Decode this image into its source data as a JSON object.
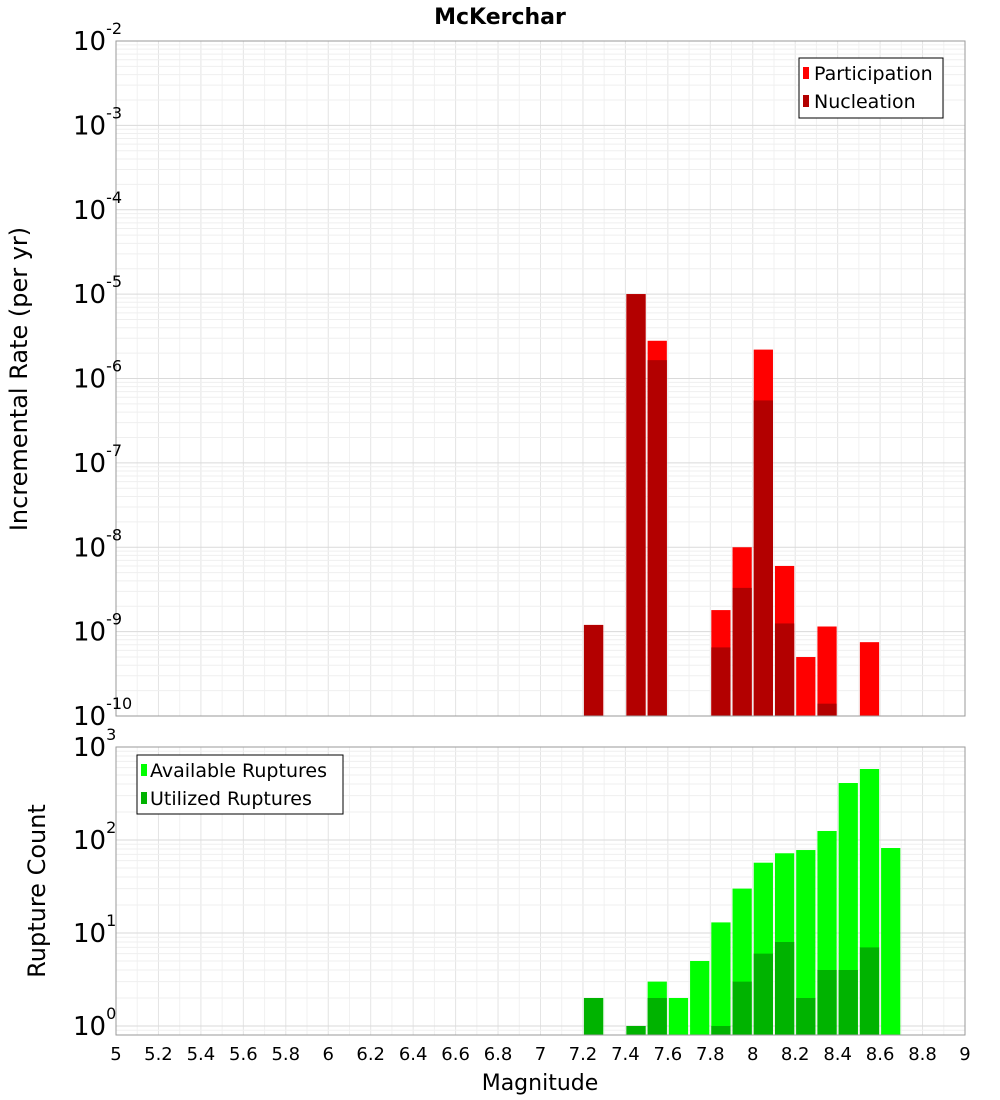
{
  "chart_data": [
    {
      "type": "bar",
      "title": "McKerchar",
      "xlabel": "",
      "ylabel": "Incremental Rate (per yr)",
      "yscale": "log",
      "ylim": [
        1e-10,
        0.01
      ],
      "xlim": [
        5,
        9
      ],
      "bin_width": 0.1,
      "y_ticks": [
        {
          "base": "10",
          "exp": "-10"
        },
        {
          "base": "10",
          "exp": "-9"
        },
        {
          "base": "10",
          "exp": "-8"
        },
        {
          "base": "10",
          "exp": "-7"
        },
        {
          "base": "10",
          "exp": "-6"
        },
        {
          "base": "10",
          "exp": "-5"
        },
        {
          "base": "10",
          "exp": "-4"
        },
        {
          "base": "10",
          "exp": "-3"
        },
        {
          "base": "10",
          "exp": "-2"
        }
      ],
      "grid": true,
      "legend_position": "top-right",
      "series": [
        {
          "name": "Participation",
          "color": "#ff0000",
          "points": [
            {
              "x": 7.25,
              "y": 1.2e-09
            },
            {
              "x": 7.45,
              "y": 1e-05
            },
            {
              "x": 7.55,
              "y": 2.8e-06
            },
            {
              "x": 7.85,
              "y": 1.8e-09
            },
            {
              "x": 7.95,
              "y": 1e-08
            },
            {
              "x": 8.05,
              "y": 2.2e-06
            },
            {
              "x": 8.15,
              "y": 6e-09
            },
            {
              "x": 8.25,
              "y": 5e-10
            },
            {
              "x": 8.35,
              "y": 1.15e-09
            },
            {
              "x": 8.55,
              "y": 7.5e-10
            }
          ]
        },
        {
          "name": "Nucleation",
          "color": "#b30000",
          "points": [
            {
              "x": 7.25,
              "y": 1.2e-09
            },
            {
              "x": 7.45,
              "y": 1e-05
            },
            {
              "x": 7.55,
              "y": 1.65e-06
            },
            {
              "x": 7.85,
              "y": 6.5e-10
            },
            {
              "x": 7.95,
              "y": 3.3e-09
            },
            {
              "x": 8.05,
              "y": 5.5e-07
            },
            {
              "x": 8.15,
              "y": 1.25e-09
            },
            {
              "x": 8.35,
              "y": 1.4e-10
            }
          ]
        }
      ]
    },
    {
      "type": "bar",
      "title": "",
      "xlabel": "Magnitude",
      "ylabel": "Rupture Count",
      "yscale": "log",
      "ylim": [
        0.8,
        1000
      ],
      "xlim": [
        5,
        9
      ],
      "bin_width": 0.1,
      "y_ticks": [
        {
          "base": "10",
          "exp": "0"
        },
        {
          "base": "10",
          "exp": "1"
        },
        {
          "base": "10",
          "exp": "2"
        },
        {
          "base": "10",
          "exp": "3"
        }
      ],
      "x_ticks": [
        "5",
        "5.2",
        "5.4",
        "5.6",
        "5.8",
        "6",
        "6.2",
        "6.4",
        "6.6",
        "6.8",
        "7",
        "7.2",
        "7.4",
        "7.6",
        "7.8",
        "8",
        "8.2",
        "8.4",
        "8.6",
        "8.8",
        "9"
      ],
      "grid": true,
      "legend_position": "top-left",
      "series": [
        {
          "name": "Available Ruptures",
          "color": "#00ff00",
          "points": [
            {
              "x": 7.25,
              "y": 2
            },
            {
              "x": 7.45,
              "y": 1
            },
            {
              "x": 7.55,
              "y": 3
            },
            {
              "x": 7.65,
              "y": 2
            },
            {
              "x": 7.75,
              "y": 5
            },
            {
              "x": 7.85,
              "y": 13
            },
            {
              "x": 7.95,
              "y": 30
            },
            {
              "x": 8.05,
              "y": 57
            },
            {
              "x": 8.15,
              "y": 72
            },
            {
              "x": 8.25,
              "y": 78
            },
            {
              "x": 8.35,
              "y": 125
            },
            {
              "x": 8.45,
              "y": 410
            },
            {
              "x": 8.55,
              "y": 580
            },
            {
              "x": 8.65,
              "y": 82
            }
          ]
        },
        {
          "name": "Utilized Ruptures",
          "color": "#00b300",
          "points": [
            {
              "x": 7.25,
              "y": 2
            },
            {
              "x": 7.45,
              "y": 1
            },
            {
              "x": 7.55,
              "y": 2
            },
            {
              "x": 7.85,
              "y": 1
            },
            {
              "x": 7.95,
              "y": 3
            },
            {
              "x": 8.05,
              "y": 6
            },
            {
              "x": 8.15,
              "y": 8
            },
            {
              "x": 8.25,
              "y": 2
            },
            {
              "x": 8.35,
              "y": 4
            },
            {
              "x": 8.45,
              "y": 4
            },
            {
              "x": 8.55,
              "y": 7
            }
          ]
        }
      ]
    }
  ]
}
